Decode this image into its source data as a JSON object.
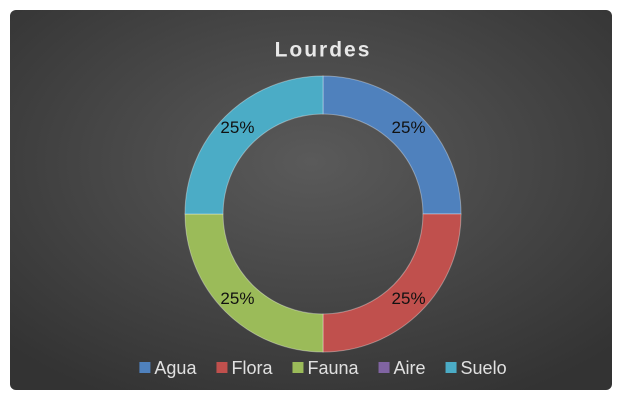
{
  "chart_data": {
    "type": "doughnut",
    "title": "Lourdes",
    "categories": [
      "Agua",
      "Flora",
      "Fauna",
      "Aire",
      "Suelo"
    ],
    "values": [
      25,
      25,
      25,
      0,
      25
    ],
    "value_labels": [
      "25%",
      "25%",
      "25%",
      null,
      "25%"
    ],
    "colors": [
      "#4f81bd",
      "#c0504d",
      "#9bbb59",
      "#8064a2",
      "#4bacc6"
    ],
    "legend": "bottom"
  }
}
